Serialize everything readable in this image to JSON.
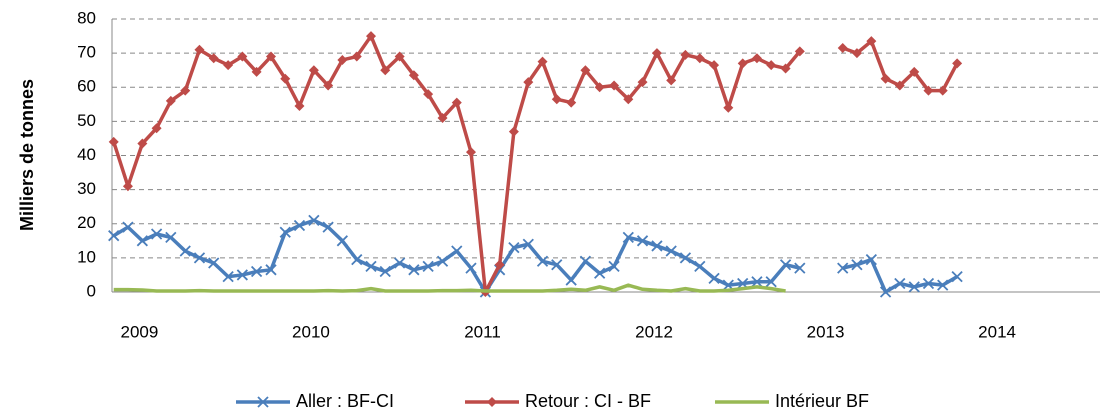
{
  "chart_data": {
    "type": "line",
    "y_label": "Milliers de tonnes",
    "x": [
      2008.85,
      2008.933,
      2009.017,
      2009.1,
      2009.183,
      2009.267,
      2009.35,
      2009.433,
      2009.517,
      2009.6,
      2009.683,
      2009.767,
      2009.85,
      2009.933,
      2010.017,
      2010.1,
      2010.183,
      2010.267,
      2010.35,
      2010.433,
      2010.517,
      2010.6,
      2010.683,
      2010.767,
      2010.85,
      2010.933,
      2011.017,
      2011.1,
      2011.183,
      2011.267,
      2011.35,
      2011.433,
      2011.517,
      2011.6,
      2011.683,
      2011.767,
      2011.85,
      2011.933,
      2012.017,
      2012.1,
      2012.183,
      2012.267,
      2012.35,
      2012.433,
      2012.517,
      2012.6,
      2012.683,
      2012.767,
      2012.85,
      2012.933,
      2013.017,
      2013.1,
      2013.183,
      2013.267,
      2013.35,
      2013.433,
      2013.517,
      2013.6,
      2013.683,
      2013.767
    ],
    "series": [
      {
        "name": "Aller : BF-CI",
        "color": "#4a7ebb",
        "marker": "x",
        "values": [
          16.5,
          19,
          15,
          17,
          16,
          12,
          10,
          8.5,
          4.5,
          5,
          6,
          6.5,
          17.5,
          19.5,
          21,
          19,
          15,
          9.5,
          7.5,
          6,
          8.5,
          6.5,
          7.5,
          9,
          12,
          7,
          0,
          6.5,
          13,
          14,
          9,
          8,
          3.5,
          9,
          5.5,
          7.5,
          16,
          15,
          13.5,
          12,
          10,
          7.5,
          4,
          2,
          2.5,
          3,
          3,
          8,
          7,
          null,
          null,
          7,
          8,
          9.5,
          0,
          2.5,
          1.5,
          2.5,
          2,
          4.5
        ]
      },
      {
        "name": "Retour : CI - BF",
        "color": "#be4b48",
        "marker": "diamond",
        "values": [
          44,
          31,
          43.5,
          48,
          56,
          59,
          71,
          68.5,
          66.5,
          69,
          64.5,
          69,
          62.5,
          54.5,
          65,
          60.5,
          68,
          69,
          75,
          65,
          69,
          63.5,
          58,
          51,
          55.5,
          41,
          0,
          8,
          47,
          61.5,
          67.5,
          56.5,
          55.5,
          65,
          60,
          60.5,
          56.5,
          61.5,
          70,
          62,
          69.5,
          68.5,
          66.5,
          54,
          67,
          68.5,
          66.5,
          65.5,
          70.5,
          null,
          null,
          71.5,
          70,
          73.5,
          62.5,
          60.5,
          64.5,
          59,
          59,
          67
        ]
      },
      {
        "name": "Intérieur BF",
        "color": "#98b954",
        "marker": null,
        "values": [
          0.7,
          0.7,
          0.6,
          0.3,
          0.3,
          0.3,
          0.4,
          0.3,
          0.3,
          0.3,
          0.3,
          0.3,
          0.3,
          0.3,
          0.3,
          0.4,
          0.3,
          0.4,
          1,
          0.3,
          0.3,
          0.3,
          0.3,
          0.4,
          0.4,
          0.5,
          0.3,
          0.3,
          0.3,
          0.3,
          0.3,
          0.5,
          0.8,
          0.5,
          1.5,
          0.5,
          2,
          0.8,
          0.5,
          0.3,
          1,
          0.3,
          0.3,
          0.5,
          1,
          1.5,
          1,
          0.3,
          null,
          null,
          null,
          null,
          null,
          null,
          null,
          null,
          null,
          null,
          null,
          null
        ]
      }
    ],
    "xlim": [
      2008.84,
      2014.6
    ],
    "xticks": [
      2009,
      2010,
      2011,
      2012,
      2013,
      2014
    ],
    "ylim": [
      0,
      80
    ],
    "yticks": [
      0,
      10,
      20,
      30,
      40,
      50,
      60,
      70,
      80
    ],
    "grid": true,
    "legend": "bottom"
  }
}
